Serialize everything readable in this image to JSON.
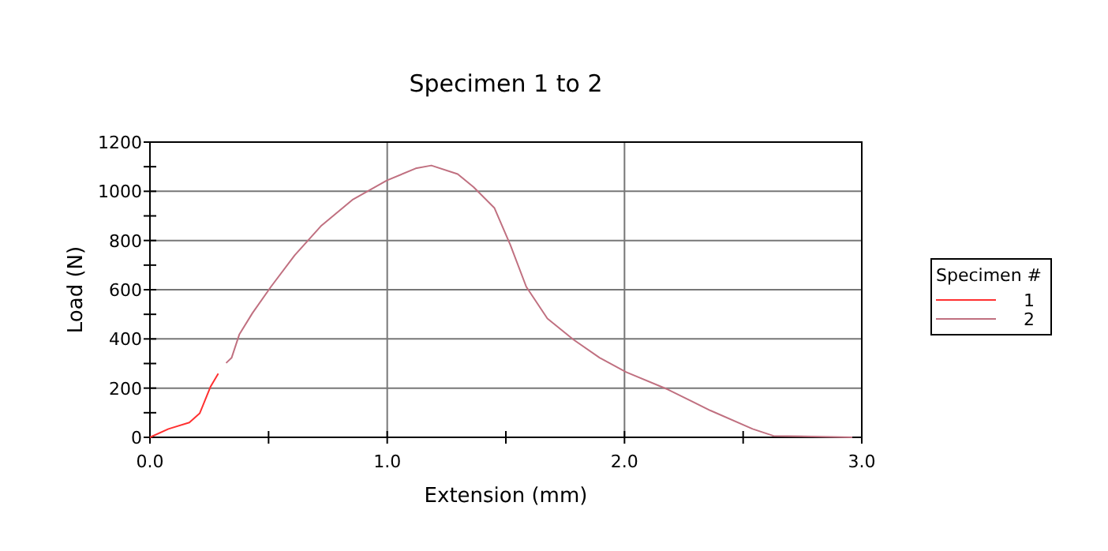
{
  "chart_data": {
    "type": "line",
    "title": "Specimen 1 to 2",
    "xlabel": "Extension (mm)",
    "ylabel": "Load (N)",
    "legend_title": "Specimen #",
    "legend": "right",
    "grid": true,
    "xlim": [
      0,
      3
    ],
    "xticks": [
      {
        "value": 0,
        "label": "0.0"
      },
      {
        "value": 0.5,
        "label": null
      },
      {
        "value": 1,
        "label": "1.0"
      },
      {
        "value": 1.5,
        "label": null
      },
      {
        "value": 2,
        "label": "2.0"
      },
      {
        "value": 2.5,
        "label": null
      },
      {
        "value": 3,
        "label": "3.0"
      }
    ],
    "ylim": [
      0,
      1200
    ],
    "yticks": [
      0,
      {
        "value": 100,
        "label": null
      },
      200,
      {
        "value": 300,
        "label": null
      },
      400,
      {
        "value": 500,
        "label": null
      },
      600,
      {
        "value": 700,
        "label": null
      },
      800,
      {
        "value": 900,
        "label": null
      },
      1000,
      {
        "value": 1100,
        "label": null
      },
      1200
    ],
    "series": [
      {
        "name": "1",
        "color": "#ff3030",
        "x": [
          0,
          0.078,
          0.166,
          0.21,
          0.255,
          0.288
        ],
        "values": [
          0,
          34,
          60,
          98,
          205,
          259
        ]
      },
      {
        "name": "2",
        "color": "#c07080",
        "x": [
          0.321,
          0.344,
          0.377,
          0.432,
          0.51,
          0.61,
          0.72,
          0.853,
          0.998,
          1.12,
          1.186,
          1.297,
          1.364,
          1.452,
          1.519,
          1.586,
          1.675,
          1.785,
          1.896,
          2.007,
          2.184,
          2.362,
          2.54,
          2.628,
          2.96
        ],
        "values": [
          302,
          323,
          419,
          505,
          612,
          740,
          858,
          965,
          1044,
          1093,
          1105,
          1070,
          1017,
          932,
          782,
          612,
          483,
          397,
          323,
          265,
          194,
          109,
          34,
          6,
          0
        ]
      }
    ]
  }
}
